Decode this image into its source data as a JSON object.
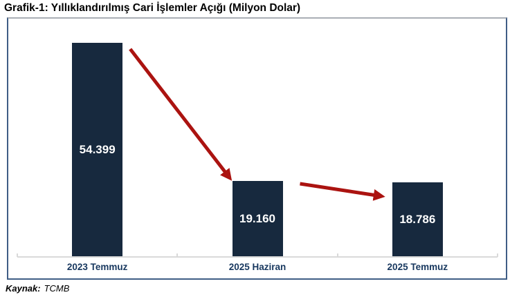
{
  "title": "Grafik-1: Yıllıklandırılmış Cari İşlemler Açığı (Milyon Dolar)",
  "source": {
    "label": "Kaynak:",
    "value": "TCMB"
  },
  "colors": {
    "bar_fill": "#17293e",
    "value_label": "#ffffff",
    "category_label": "#17375e",
    "arrow": "#ab1310",
    "axis_line": "#d9d9d9",
    "frame_border": "#3f5d85",
    "frame_border_top": "#a9aeb5"
  },
  "chart_data": {
    "type": "bar",
    "title": "Grafik-1: Yıllıklandırılmış Cari İşlemler Açığı (Milyon Dolar)",
    "categories": [
      "2023 Temmuz",
      "2025 Haziran",
      "2025 Temmuz"
    ],
    "values": [
      54399,
      19160,
      18786
    ],
    "value_labels": [
      "54.399",
      "19.160",
      "18.786"
    ],
    "xlabel": "",
    "ylabel": "Milyon Dolar",
    "ylim": [
      0,
      60000
    ],
    "grid": false,
    "legend": false,
    "value_labels_position": "inside-center",
    "annotations": [
      "red decline arrow from 2023 Temmuz bar top to 2025 Haziran bar top",
      "red decline arrow from 2025 Haziran bar top to 2025 Temmuz bar top"
    ]
  }
}
